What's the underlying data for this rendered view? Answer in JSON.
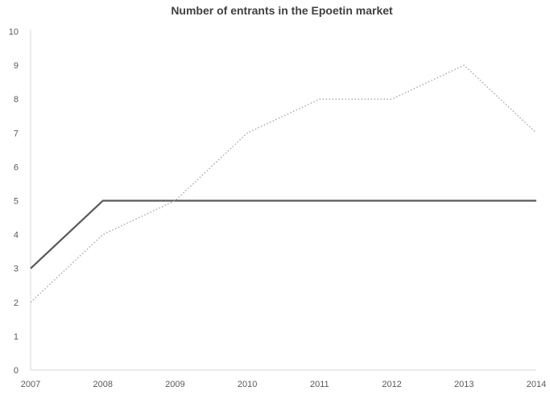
{
  "chart_data": {
    "type": "line",
    "title": "Number of entrants in the Epoetin market",
    "xlabel": "",
    "ylabel": "",
    "x": [
      2007,
      2008,
      2009,
      2010,
      2011,
      2012,
      2013,
      2014
    ],
    "ylim": [
      0,
      10
    ],
    "yticks": [
      0,
      1,
      2,
      3,
      4,
      5,
      6,
      7,
      8,
      9,
      10
    ],
    "grid": false,
    "legend": "none",
    "series": [
      {
        "values": [
          3,
          5,
          5,
          5,
          5,
          5,
          5,
          5
        ],
        "style": "solid",
        "color": "#595959"
      },
      {
        "values": [
          2,
          4,
          5,
          7,
          8,
          8,
          9,
          7
        ],
        "style": "dotted",
        "color": "#a6a6a6"
      }
    ],
    "axis_color": "#d9d9d9"
  }
}
